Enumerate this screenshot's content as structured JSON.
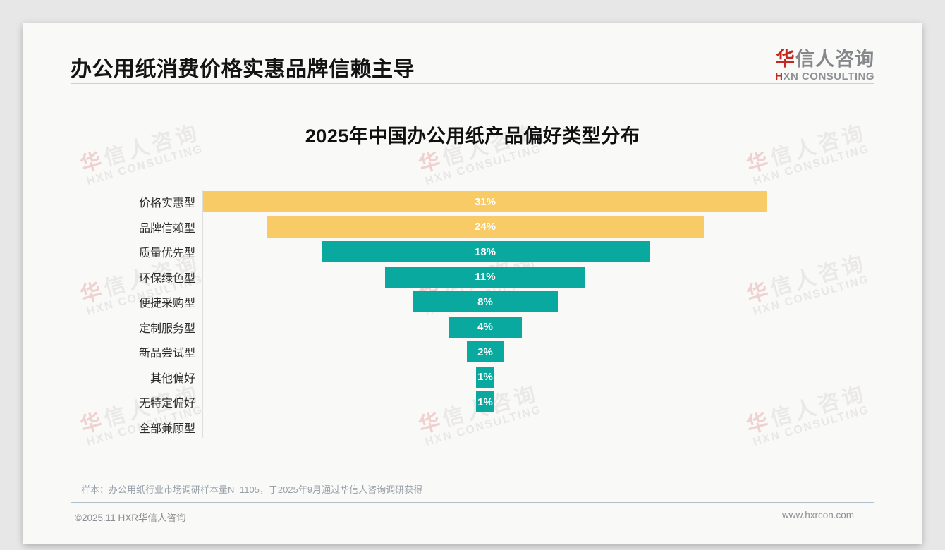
{
  "header": {
    "title": "办公用纸消费价格实惠品牌信赖主导"
  },
  "logo": {
    "cn_first": "华",
    "cn_rest": "信人咨询",
    "en_first": "H",
    "en_rest": "XN CONSULTING"
  },
  "chart_data": {
    "type": "bar",
    "variant": "horizontal-centered-funnel",
    "title": "2025年中国办公用纸产品偏好类型分布",
    "categories": [
      "价格实惠型",
      "品牌信赖型",
      "质量优先型",
      "环保绿色型",
      "便捷采购型",
      "定制服务型",
      "新品尝试型",
      "其他偏好",
      "无特定偏好",
      "全部兼顾型"
    ],
    "values": [
      31,
      24,
      18,
      11,
      8,
      4,
      2,
      1,
      1,
      0
    ],
    "unit": "%",
    "xlim": [
      0,
      31
    ],
    "bar_colors": [
      "#f9cb66",
      "#f9cb66",
      "#0aa9a0",
      "#0aa9a0",
      "#0aa9a0",
      "#0aa9a0",
      "#0aa9a0",
      "#0aa9a0",
      "#0aa9a0",
      "#0aa9a0"
    ],
    "colors": {
      "highlight": "#f9cb66",
      "base": "#0aa9a0",
      "value_label": "#ffffff"
    },
    "legend": "none",
    "grid": "off"
  },
  "watermark": {
    "cn_first": "华",
    "cn_rest": "信人咨询",
    "en": "HXN CONSULTING"
  },
  "footer": {
    "note": "样本：办公用纸行业市场调研样本量N=1105，于2025年9月通过华信人咨询调研获得",
    "copyright": "©2025.11 HXR华信人咨询",
    "website": "www.hxrcon.com"
  }
}
